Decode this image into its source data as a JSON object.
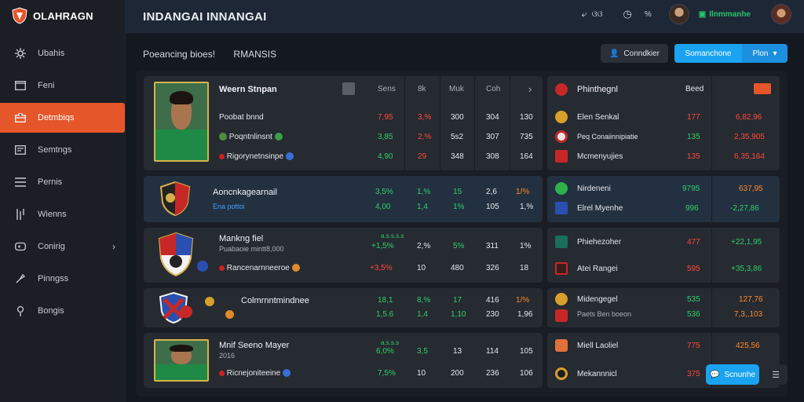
{
  "brand": {
    "name": "OLAHRAGN",
    "accent_color": "#e5562a"
  },
  "topbar": {
    "title": "INDANGAI INNANGAI",
    "settings_text": "ଓଓ",
    "percent_text": "%",
    "promo_label": "Ilnmmanhe"
  },
  "sidebar": {
    "items": [
      {
        "label": "Ubahis",
        "icon": "gear-icon"
      },
      {
        "label": "Feni",
        "icon": "folder-icon"
      },
      {
        "label": "Detmbiqs",
        "icon": "briefcase-icon",
        "active": true
      },
      {
        "label": "Semtngs",
        "icon": "tray-icon"
      },
      {
        "label": "Pernis",
        "icon": "list-icon"
      },
      {
        "label": "Wienns",
        "icon": "bars-icon"
      },
      {
        "label": "Conirig",
        "icon": "controller-icon",
        "chevron": "›"
      },
      {
        "label": "Pinngss",
        "icon": "puzzle-icon"
      },
      {
        "label": "Bongis",
        "icon": "pin-icon"
      }
    ]
  },
  "subheader": {
    "left": "Poeancing bioes!",
    "right": "RMANSIS"
  },
  "buttons": {
    "dark_label": "Conndkier",
    "blue_left": "Somanchone",
    "blue_right": "Plon",
    "chat_label": "Scnunhe"
  },
  "table": {
    "header": {
      "name": "Weern Stnpan",
      "cols": [
        "Sens",
        "8k",
        "Muk",
        "Coh"
      ],
      "chevron": "›"
    },
    "rows": [
      {
        "title": "Weern Stnpan",
        "lines": [
          {
            "label": "Poobat bnnd",
            "vals": [
              "7,95",
              "3,%",
              "300",
              "304",
              "130"
            ],
            "colors": [
              "red",
              "red",
              "",
              "",
              ""
            ]
          },
          {
            "label": "Poqntnlinsnt",
            "vals": [
              "3,85",
              "2,%",
              "5s2",
              "307",
              "735"
            ],
            "colors": [
              "green",
              "red",
              "",
              "",
              ""
            ]
          },
          {
            "label": "Rigorynetnsinpe",
            "vals": [
              "4,90",
              "29",
              "348",
              "308",
              "164"
            ],
            "colors": [
              "green",
              "red",
              "",
              "",
              ""
            ]
          }
        ]
      },
      {
        "title": "Aoncnkagearnail",
        "sub": "Ena pottoi",
        "lines": [
          {
            "vals": [
              "3,5%",
              "1,%",
              "15",
              "2,6",
              "1/%"
            ],
            "colors": [
              "green",
              "green",
              "green",
              "",
              "orange"
            ]
          },
          {
            "vals": [
              "4,00",
              "1,4",
              "1%",
              "105",
              "1,%"
            ],
            "colors": [
              "green",
              "green",
              "green",
              "",
              ""
            ]
          }
        ]
      },
      {
        "title": "Mankng fiel",
        "sub": "Puabaoie mintt8,000",
        "badge": "a.s.s.s.s",
        "lines": [
          {
            "vals": [
              "+1,5%",
              "2,%",
              "5%",
              "311",
              "1%"
            ],
            "colors": [
              "green",
              "",
              "green",
              "",
              ""
            ]
          },
          {
            "label": "Rancenarnneeroe",
            "vals": [
              "+3,5%",
              "10",
              "480",
              "326",
              "18"
            ],
            "colors": [
              "red",
              "",
              "",
              "",
              ""
            ]
          }
        ]
      },
      {
        "title": "Colmrnntmindnee",
        "lines": [
          {
            "vals": [
              "18,1",
              "8,%",
              "17",
              "416",
              "1/%"
            ],
            "colors": [
              "green",
              "green",
              "green",
              "",
              "orange"
            ]
          },
          {
            "vals": [
              "1,5.6",
              "1,4",
              "1,10",
              "230",
              "1,96"
            ],
            "colors": [
              "green",
              "green",
              "green",
              "",
              ""
            ]
          }
        ]
      },
      {
        "title": "Mnif Seeno Mayer",
        "sub": "2016",
        "badge": "a.s.s.s",
        "lines": [
          {
            "vals": [
              "6,0%",
              "3,5",
              "13",
              "114",
              "105"
            ],
            "colors": [
              "green",
              "green",
              "",
              "",
              ""
            ]
          },
          {
            "label": "Ricnejoniteeine",
            "vals": [
              "7,5%",
              "10",
              "200",
              "236",
              "106"
            ],
            "colors": [
              "green",
              "",
              "",
              "",
              ""
            ]
          }
        ]
      }
    ]
  },
  "right_panel": {
    "header": {
      "title": "Phinthegnl",
      "col": "Beed"
    },
    "rows": [
      {
        "name": "Elen Senkal",
        "a": "177",
        "b": "6,82,96",
        "ac": "red",
        "bc": "red",
        "icon": "crest-yellow"
      },
      {
        "name": "Peq Conaiinnipiatie",
        "a": "135",
        "b": "2,35,905",
        "ac": "green",
        "bc": "red",
        "icon": "crest-red"
      },
      {
        "name": "Mcmenyujies",
        "a": "135",
        "b": "6,35,164",
        "ac": "red",
        "bc": "red",
        "icon": "crest-bars"
      },
      {
        "name": "Nirdeneni",
        "a": "9795",
        "b": "637,95",
        "ac": "green",
        "bc": "orange",
        "icon": "crest-green"
      },
      {
        "name": "Elrel Myenhe",
        "a": "996",
        "b": "-2,27,86",
        "ac": "green",
        "bc": "green",
        "icon": "crest-blue"
      },
      {
        "name": "Phiehezoher",
        "a": "477",
        "b": "+22,1,95",
        "ac": "red",
        "bc": "green",
        "icon": "crest-teal"
      },
      {
        "name": "Atei Rangei",
        "a": "595",
        "b": "+35,3,86",
        "ac": "red",
        "bc": "green",
        "icon": "crest-dark"
      },
      {
        "name": "Midengegel",
        "sub": "Paets Ben boeon",
        "a": "535",
        "b": "127,76",
        "a2": "536",
        "b2": "7,3,,103",
        "ac": "green",
        "bc": "orange",
        "icon": "crest-gold"
      },
      {
        "name": "Miell Laoliel",
        "a": "775",
        "b": "425,56",
        "ac": "red",
        "bc": "orange",
        "icon": "crest-orange"
      },
      {
        "name": "Mekannnicl",
        "a": "375",
        "b": "",
        "ac": "red",
        "bc": "",
        "icon": "crest-ring"
      }
    ]
  }
}
